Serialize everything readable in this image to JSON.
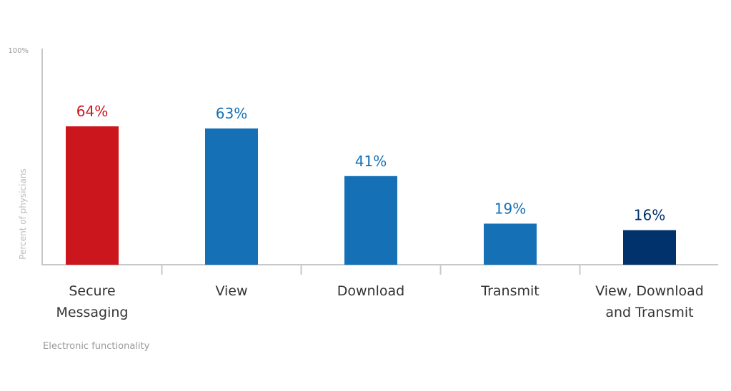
{
  "chart_data": {
    "type": "bar",
    "categories": [
      [
        "Secure",
        "Messaging"
      ],
      [
        "View"
      ],
      [
        "Download"
      ],
      [
        "Transmit"
      ],
      [
        "View, Download",
        "and Transmit"
      ]
    ],
    "values": [
      64,
      63,
      41,
      19,
      16
    ],
    "value_labels": [
      "64%",
      "63%",
      "41%",
      "19%",
      "16%"
    ],
    "bar_colors": [
      "#cc161d",
      "#1570b6",
      "#1570b6",
      "#1570b6",
      "#02326b"
    ],
    "label_colors": [
      "#cc161d",
      "#1570b6",
      "#1570b6",
      "#1570b6",
      "#02326b"
    ],
    "ylabel": "Percent of physicians",
    "xlabel": "Electronic functionality",
    "y_tick_label": "100%",
    "ylim": [
      0,
      100
    ],
    "grid": false,
    "axis_color": "#c8c8c8"
  }
}
